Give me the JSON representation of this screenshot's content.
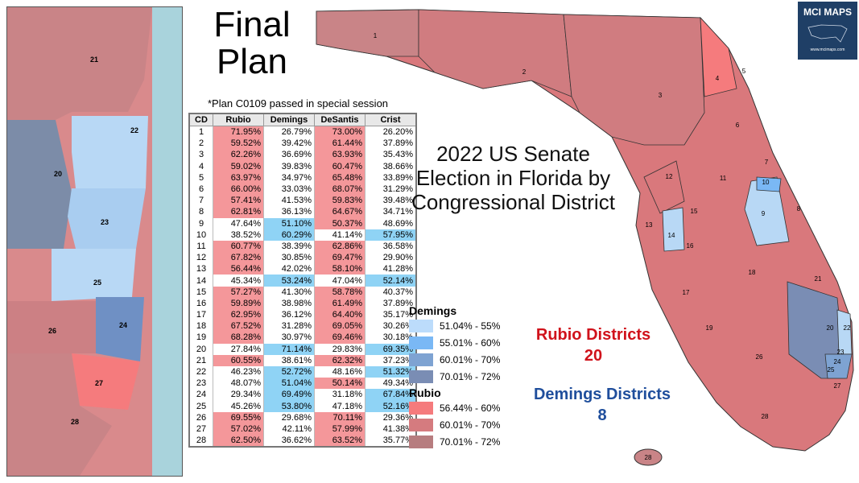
{
  "title": "Final Plan",
  "note": "*Plan C0109 passed in special session",
  "heading": "2022 US Senate Election in Florida by Congressional District",
  "table": {
    "headers": [
      "CD",
      "Rubio",
      "Demings",
      "DeSantis",
      "Crist"
    ],
    "rows": [
      [
        "1",
        "71.95%",
        "26.79%",
        "73.00%",
        "26.20%"
      ],
      [
        "2",
        "59.52%",
        "39.42%",
        "61.44%",
        "37.89%"
      ],
      [
        "3",
        "62.26%",
        "36.69%",
        "63.93%",
        "35.43%"
      ],
      [
        "4",
        "59.02%",
        "39.83%",
        "60.47%",
        "38.66%"
      ],
      [
        "5",
        "63.97%",
        "34.97%",
        "65.48%",
        "33.89%"
      ],
      [
        "6",
        "66.00%",
        "33.03%",
        "68.07%",
        "31.29%"
      ],
      [
        "7",
        "57.41%",
        "41.53%",
        "59.83%",
        "39.48%"
      ],
      [
        "8",
        "62.81%",
        "36.13%",
        "64.67%",
        "34.71%"
      ],
      [
        "9",
        "47.64%",
        "51.10%",
        "50.37%",
        "48.69%"
      ],
      [
        "10",
        "38.52%",
        "60.29%",
        "41.14%",
        "57.95%"
      ],
      [
        "11",
        "60.77%",
        "38.39%",
        "62.86%",
        "36.58%"
      ],
      [
        "12",
        "67.82%",
        "30.85%",
        "69.47%",
        "29.90%"
      ],
      [
        "13",
        "56.44%",
        "42.02%",
        "58.10%",
        "41.28%"
      ],
      [
        "14",
        "45.34%",
        "53.24%",
        "47.04%",
        "52.14%"
      ],
      [
        "15",
        "57.27%",
        "41.30%",
        "58.78%",
        "40.37%"
      ],
      [
        "16",
        "59.89%",
        "38.98%",
        "61.49%",
        "37.89%"
      ],
      [
        "17",
        "62.95%",
        "36.12%",
        "64.40%",
        "35.17%"
      ],
      [
        "18",
        "67.52%",
        "31.28%",
        "69.05%",
        "30.26%"
      ],
      [
        "19",
        "68.28%",
        "30.97%",
        "69.46%",
        "30.18%"
      ],
      [
        "20",
        "27.84%",
        "71.14%",
        "29.83%",
        "69.35%"
      ],
      [
        "21",
        "60.55%",
        "38.61%",
        "62.32%",
        "37.23%"
      ],
      [
        "22",
        "46.23%",
        "52.72%",
        "48.16%",
        "51.32%"
      ],
      [
        "23",
        "48.07%",
        "51.04%",
        "50.14%",
        "49.34%"
      ],
      [
        "24",
        "29.34%",
        "69.49%",
        "31.18%",
        "67.84%"
      ],
      [
        "25",
        "45.26%",
        "53.80%",
        "47.18%",
        "52.16%"
      ],
      [
        "26",
        "69.55%",
        "29.68%",
        "70.11%",
        "29.36%"
      ],
      [
        "27",
        "57.02%",
        "42.11%",
        "57.99%",
        "41.38%"
      ],
      [
        "28",
        "62.50%",
        "36.62%",
        "63.52%",
        "35.77%"
      ]
    ]
  },
  "legend": {
    "demings": {
      "title": "Demings",
      "items": [
        {
          "label": "51.04% - 55%",
          "color": "#bcdcfb"
        },
        {
          "label": "55.01% - 60%",
          "color": "#7ab8f5"
        },
        {
          "label": "60.01% - 70%",
          "color": "#7ea3d2"
        },
        {
          "label": "70.01% - 72%",
          "color": "#7a8db4"
        }
      ]
    },
    "rubio": {
      "title": "Rubio",
      "items": [
        {
          "label": "56.44% - 60%",
          "color": "#f57b7d"
        },
        {
          "label": "60.01% - 70%",
          "color": "#d57b7f"
        },
        {
          "label": "70.01% - 72%",
          "color": "#b77d7f"
        }
      ]
    }
  },
  "summary": {
    "rubio_label": "Rubio Districts",
    "rubio_count": "20",
    "demings_label": "Demings Districts",
    "demings_count": "8",
    "rubio_color": "#d0121b",
    "demings_color": "#1f4e9c"
  },
  "logo": {
    "text": "MCI MAPS",
    "url_text": "www.mcimaps.com"
  },
  "inset_labels": [
    "21",
    "22",
    "20",
    "23",
    "25",
    "26",
    "24",
    "27",
    "28"
  ],
  "map_labels": [
    "1",
    "2",
    "3",
    "4",
    "5",
    "6",
    "7",
    "8",
    "9",
    "10",
    "11",
    "12",
    "13",
    "14",
    "15",
    "16",
    "17",
    "18",
    "19",
    "20",
    "21",
    "22",
    "23",
    "24",
    "25",
    "26",
    "27",
    "28",
    "28"
  ]
}
